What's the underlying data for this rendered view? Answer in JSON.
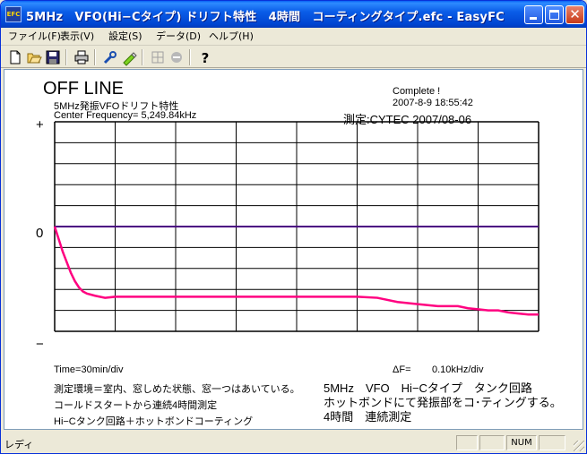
{
  "window": {
    "title": "5MHz　VFO(Hi−Cタイプ) ドリフト特性　4時間　コーティングタイプ.efc - EasyFC",
    "app_icon_text": "EFC"
  },
  "menu": [
    "ファイル(F)",
    "表示(V)",
    "設定(S)",
    "データ(D)",
    "ヘルプ(H)"
  ],
  "toolbar": [
    "new-icon",
    "open-icon",
    "save-icon",
    "print-icon",
    "wrench-icon",
    "marker-icon",
    "grid-icon",
    "stop-icon",
    "help-icon"
  ],
  "display": {
    "status_big": "OFF LINE",
    "subtitle": "5MHz発振VFOドリフト特性",
    "center_freq": "Center Frequency=  5,249.84kHz",
    "complete": "Complete !",
    "datetime": "2007-8-9  18:55:42",
    "measured": "測定:CYTEC  2007/08-06",
    "plus_sign": "+",
    "zero_sign": "0",
    "minus_sign": "−",
    "time_div": "Time=30min/div",
    "delta_label": "ΔF=",
    "freq_div": "0.10kHz/div",
    "notes_left": [
      "測定環境＝室内、窓しめた状態、窓一つはあいている。",
      "コールドスタートから連続4時間測定",
      "Hi−Cタンク回路＋ホットボンドコーティング"
    ],
    "notes_right": [
      "5MHz　VFO　Hi−Cタイプ　タンク回路",
      "ホットボンドにて発振部をコ･ティングする。",
      "4時間　連続測定"
    ]
  },
  "chart_data": {
    "type": "line",
    "x_unit": "min",
    "y_unit": "kHz",
    "xlim": [
      0,
      240
    ],
    "ylim": [
      -0.5,
      0.5
    ],
    "grid_x_divisions": 8,
    "grid_y_divisions": 10,
    "colors": {
      "reference": "#4B0082",
      "trace": "#FF0080",
      "grid": "#000000"
    },
    "series": [
      {
        "role": "reference",
        "x": [
          0,
          240
        ],
        "y": [
          0,
          0
        ]
      },
      {
        "role": "drift",
        "x": [
          0,
          2,
          4,
          6,
          8,
          10,
          12,
          14,
          16,
          20,
          25,
          30,
          40,
          60,
          80,
          100,
          120,
          140,
          150,
          160,
          170,
          180,
          190,
          200,
          205,
          210,
          215,
          220,
          225,
          230,
          235,
          240
        ],
        "y": [
          0,
          -0.06,
          -0.12,
          -0.17,
          -0.22,
          -0.26,
          -0.29,
          -0.31,
          -0.32,
          -0.33,
          -0.34,
          -0.335,
          -0.335,
          -0.335,
          -0.335,
          -0.335,
          -0.335,
          -0.335,
          -0.335,
          -0.34,
          -0.36,
          -0.37,
          -0.38,
          -0.38,
          -0.39,
          -0.395,
          -0.4,
          -0.4,
          -0.41,
          -0.415,
          -0.42,
          -0.42
        ]
      }
    ]
  },
  "statusbar": {
    "text": "レディ",
    "panels": [
      "",
      "",
      "NUM",
      ""
    ]
  }
}
